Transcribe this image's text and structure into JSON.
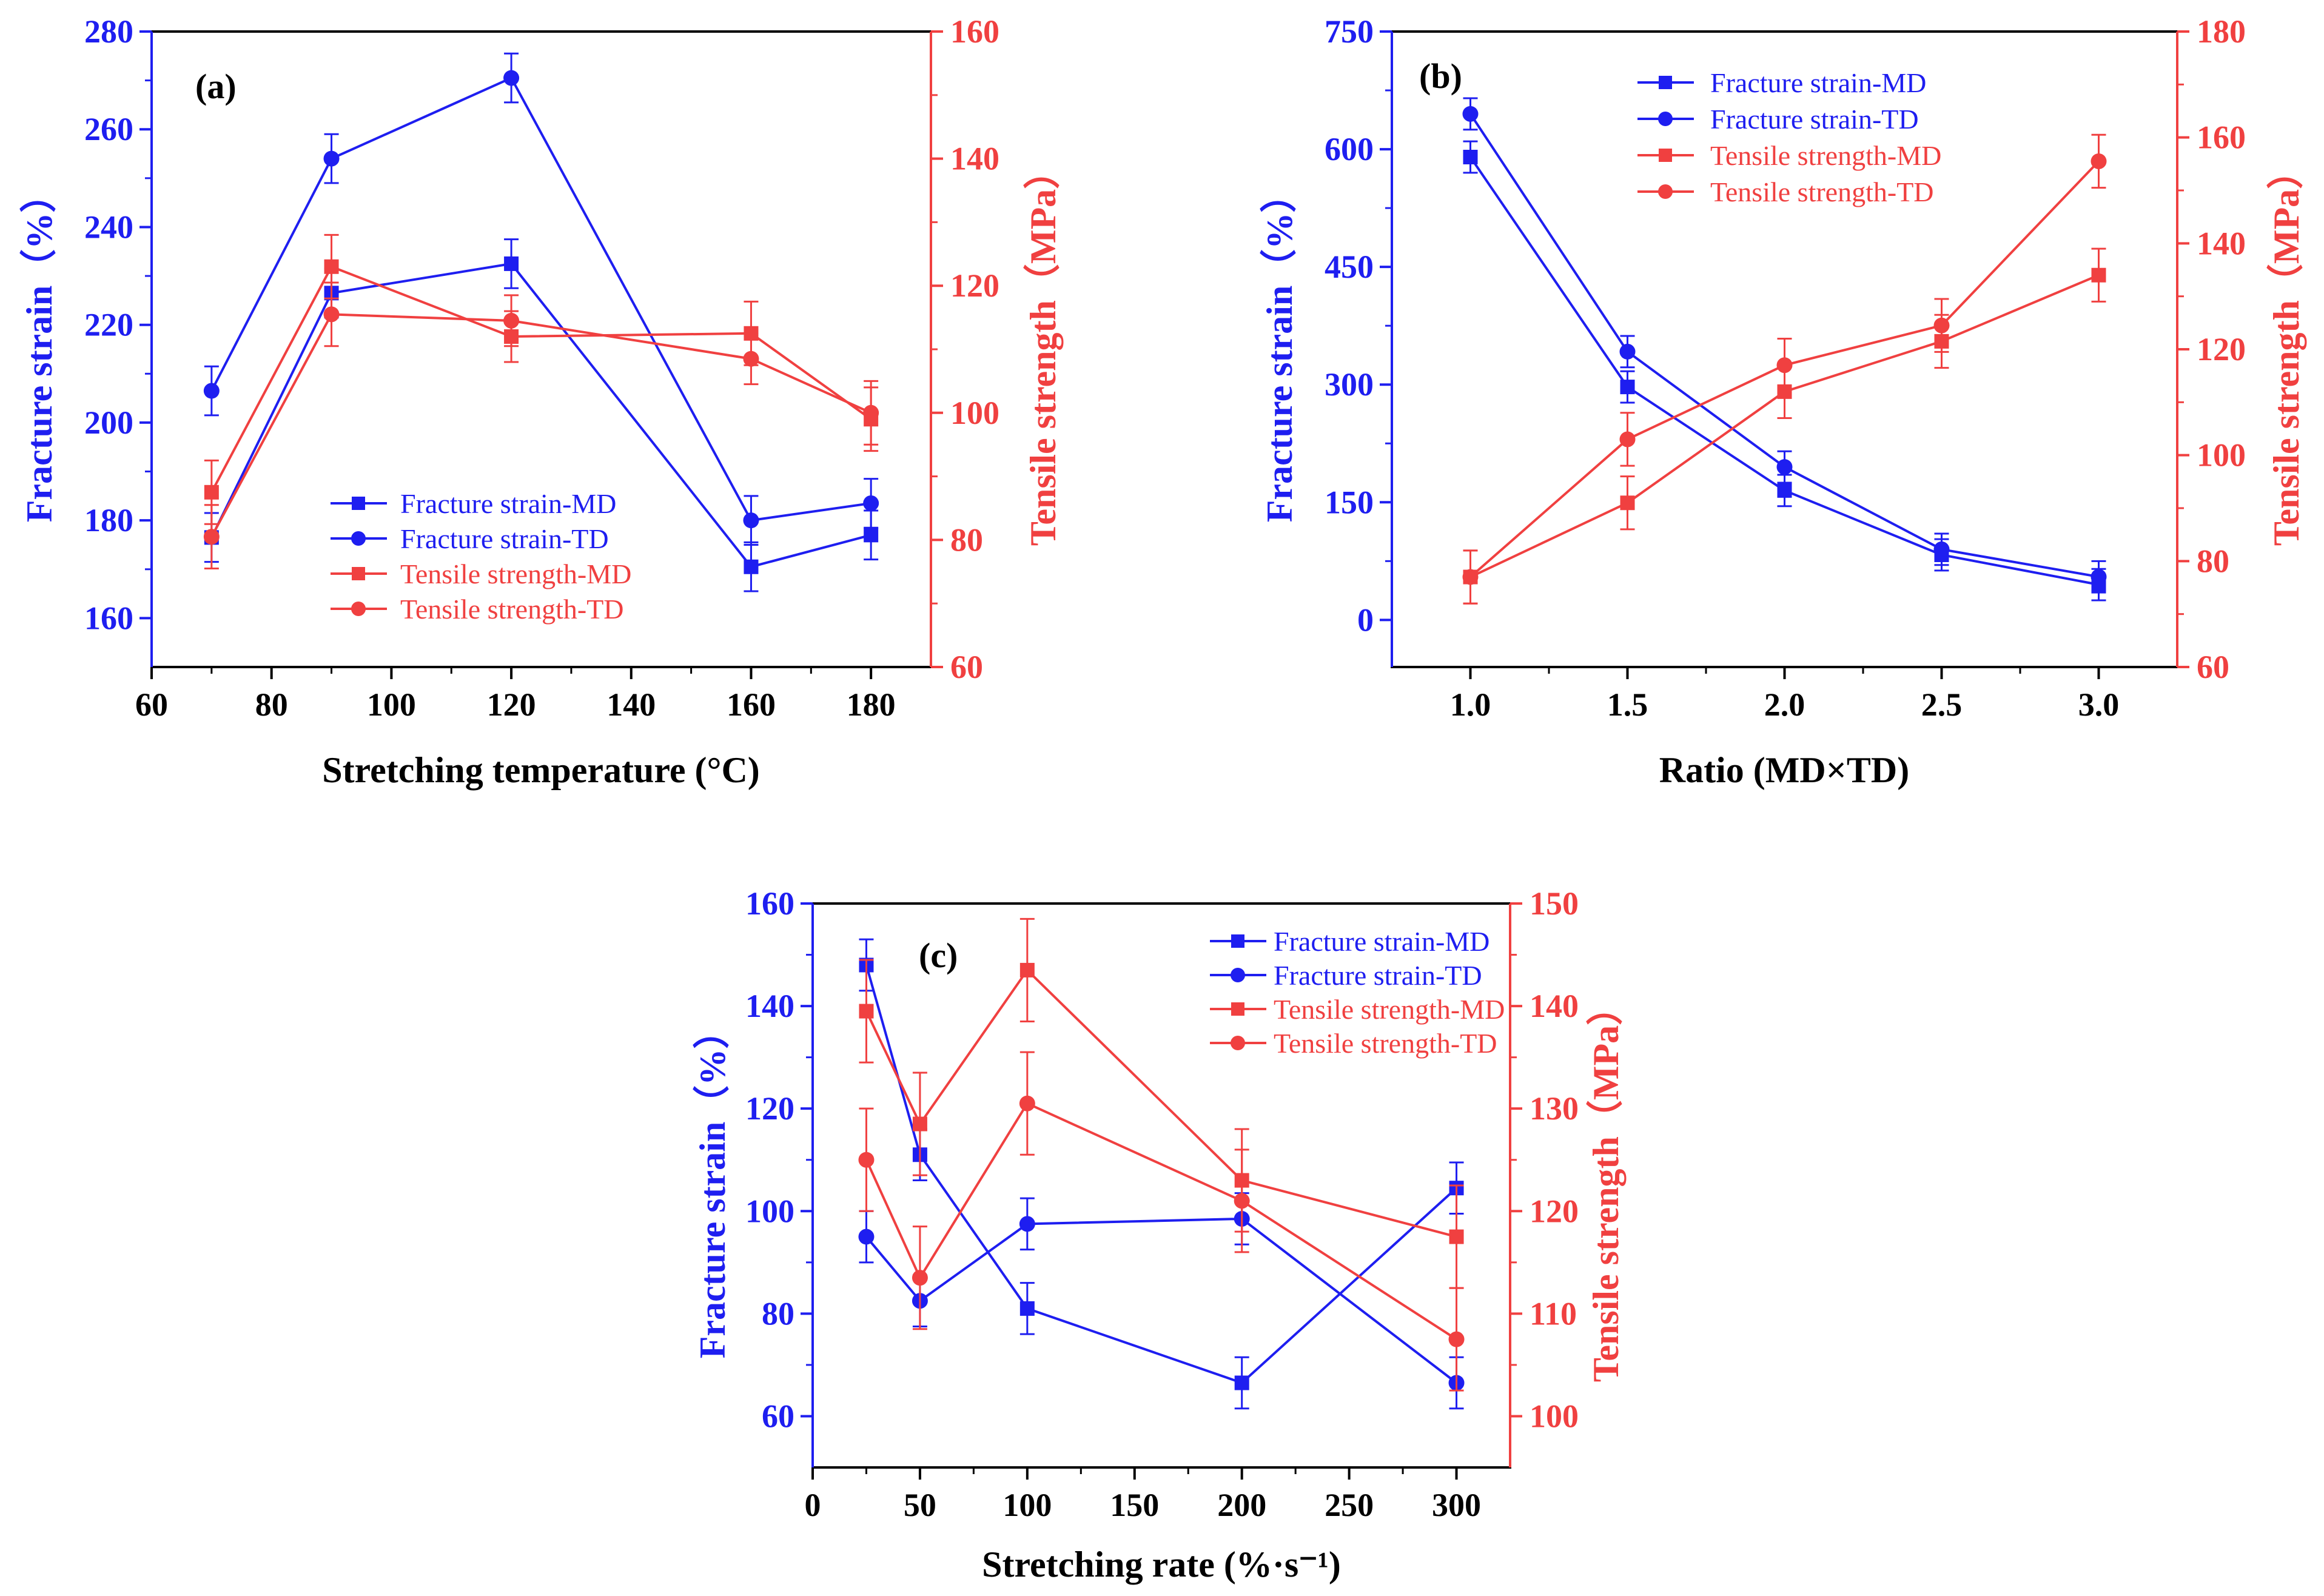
{
  "colors": {
    "blue": "#1e1ef0",
    "red": "#f04040",
    "axis": "#000000"
  },
  "chart_data": [
    {
      "type": "line",
      "panel_label": "(a)",
      "xlabel": "Stretching temperature (°C)",
      "ylabel_left": "Fracture strain（%）",
      "ylabel_right": "Tensile strength（MPa）",
      "xlim": [
        60,
        190
      ],
      "ylim_left": [
        150,
        280
      ],
      "ylim_right": [
        60,
        160
      ],
      "x_ticks": [
        "60",
        "80",
        "100",
        "120",
        "140",
        "160",
        "180"
      ],
      "y_ticks_left": [
        "160",
        "180",
        "200",
        "220",
        "240",
        "260",
        "280"
      ],
      "y_ticks_right": [
        "60",
        "80",
        "100",
        "120",
        "140",
        "160"
      ],
      "legend": [
        "Fracture strain-MD",
        "Fracture strain-TD",
        "Tensile strength-MD",
        "Tensile strength-TD"
      ],
      "series": [
        {
          "name": "Fracture strain-MD",
          "axis": "left",
          "color": "blue",
          "marker": "square",
          "x": [
            70,
            90,
            120,
            160,
            180
          ],
          "values": [
            176.5,
            226.5,
            232.5,
            170.5,
            177
          ],
          "errors": [
            5,
            5,
            5,
            5,
            5
          ]
        },
        {
          "name": "Fracture strain-TD",
          "axis": "left",
          "color": "blue",
          "marker": "circle",
          "x": [
            70,
            90,
            120,
            160,
            180
          ],
          "values": [
            206.5,
            254,
            270.5,
            180,
            183.5
          ],
          "errors": [
            5,
            5,
            5,
            5,
            5
          ]
        },
        {
          "name": "Tensile strength-MD",
          "axis": "right",
          "color": "red",
          "marker": "square",
          "x": [
            70,
            90,
            120,
            160,
            180
          ],
          "values": [
            87.5,
            123,
            112,
            112.5,
            99
          ],
          "errors": [
            5,
            5,
            4,
            5,
            5
          ]
        },
        {
          "name": "Tensile strength-TD",
          "axis": "right",
          "color": "red",
          "marker": "circle",
          "x": [
            70,
            90,
            120,
            160,
            180
          ],
          "values": [
            80.5,
            115.5,
            114.5,
            108.5,
            100
          ],
          "errors": [
            5,
            5,
            4,
            4,
            5
          ]
        }
      ]
    },
    {
      "type": "line",
      "panel_label": "(b)",
      "xlabel": "Ratio (MD×TD)",
      "ylabel_left": "Fracture strain（%）",
      "ylabel_right": "Tensile strength（MPa）",
      "xlim": [
        0.75,
        3.25
      ],
      "ylim_left": [
        -60,
        750
      ],
      "ylim_right": [
        60,
        180
      ],
      "x_ticks": [
        "1.0",
        "1.5",
        "2.0",
        "2.5",
        "3.0"
      ],
      "y_ticks_left": [
        "0",
        "150",
        "300",
        "450",
        "600",
        "750"
      ],
      "y_ticks_right": [
        "60",
        "80",
        "100",
        "120",
        "140",
        "160",
        "180"
      ],
      "legend": [
        "Fracture strain-MD",
        "Fracture strain-TD",
        "Tensile strength-MD",
        "Tensile strength-TD"
      ],
      "series": [
        {
          "name": "Fracture strain-MD",
          "axis": "left",
          "color": "blue",
          "marker": "square",
          "x": [
            1.0,
            1.5,
            2.0,
            2.5,
            3.0
          ],
          "values": [
            590,
            297,
            165,
            83,
            45
          ],
          "errors": [
            20,
            20,
            20,
            20,
            20
          ]
        },
        {
          "name": "Fracture strain-TD",
          "axis": "left",
          "color": "blue",
          "marker": "circle",
          "x": [
            1.0,
            1.5,
            2.0,
            2.5,
            3.0
          ],
          "values": [
            645,
            342,
            195,
            90,
            55
          ],
          "errors": [
            20,
            20,
            20,
            20,
            20
          ]
        },
        {
          "name": "Tensile strength-MD",
          "axis": "right",
          "color": "red",
          "marker": "square",
          "x": [
            1.0,
            1.5,
            2.0,
            2.5,
            3.0
          ],
          "values": [
            77,
            91,
            112,
            121.5,
            134
          ],
          "errors": [
            5,
            5,
            5,
            5,
            5
          ]
        },
        {
          "name": "Tensile strength-TD",
          "axis": "right",
          "color": "red",
          "marker": "circle",
          "x": [
            1.0,
            1.5,
            2.0,
            2.5,
            3.0
          ],
          "values": [
            77,
            103,
            117,
            124.5,
            155.5
          ],
          "errors": [
            5,
            5,
            5,
            5,
            5
          ]
        }
      ]
    },
    {
      "type": "line",
      "panel_label": "(c)",
      "xlabel": "Stretching rate (%·s⁻¹)",
      "ylabel_left": "Fracture strain（%）",
      "ylabel_right": "Tensile strength（MPa）",
      "xlim": [
        0,
        325
      ],
      "ylim_left": [
        50,
        160
      ],
      "ylim_right": [
        95,
        150
      ],
      "x_ticks": [
        "0",
        "50",
        "100",
        "150",
        "200",
        "250",
        "300"
      ],
      "y_ticks_left": [
        "60",
        "80",
        "100",
        "120",
        "140",
        "160"
      ],
      "y_ticks_right": [
        "100",
        "110",
        "120",
        "130",
        "140",
        "150"
      ],
      "legend": [
        "Fracture strain-MD",
        "Fracture strain-TD",
        "Tensile strength-MD",
        "Tensile strength-TD"
      ],
      "series": [
        {
          "name": "Fracture strain-MD",
          "axis": "left",
          "color": "blue",
          "marker": "square",
          "x": [
            25,
            50,
            100,
            200,
            300
          ],
          "values": [
            148,
            111,
            81,
            66.5,
            104.5
          ],
          "errors": [
            5,
            5,
            5,
            5,
            5
          ]
        },
        {
          "name": "Fracture strain-TD",
          "axis": "left",
          "color": "blue",
          "marker": "circle",
          "x": [
            25,
            50,
            100,
            200,
            300
          ],
          "values": [
            95,
            82.5,
            97.5,
            98.5,
            66.5
          ],
          "errors": [
            5,
            5,
            5,
            5,
            5
          ]
        },
        {
          "name": "Tensile strength-MD",
          "axis": "right",
          "color": "red",
          "marker": "square",
          "x": [
            25,
            50,
            100,
            200,
            300
          ],
          "values": [
            139.5,
            128.5,
            143.5,
            123,
            117.5
          ],
          "errors": [
            5,
            5,
            5,
            5,
            5
          ]
        },
        {
          "name": "Tensile strength-TD",
          "axis": "right",
          "color": "red",
          "marker": "circle",
          "x": [
            25,
            50,
            100,
            200,
            300
          ],
          "values": [
            125,
            113.5,
            130.5,
            121,
            107.5
          ],
          "errors": [
            5,
            5,
            5,
            5,
            5
          ]
        }
      ]
    }
  ]
}
